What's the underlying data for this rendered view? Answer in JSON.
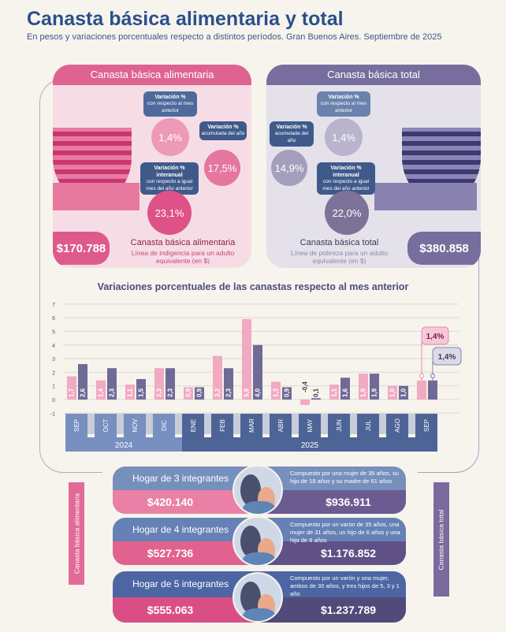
{
  "header": {
    "title": "Canasta básica alimentaria y total",
    "subtitle": "En pesos y variaciones porcentuales respecto a distintos períodos. Gran Buenos Aires. Septiembre de 2025"
  },
  "cba": {
    "title": "Canasta básica alimentaria",
    "var_mes_title": "Variación %",
    "var_mes_sub": "con respecto al mes anterior",
    "var_mes": "1,4%",
    "var_acum_title": "Variación %",
    "var_acum_sub": "acumulada del año",
    "var_acum": "17,5%",
    "var_ia_title": "Variación % interanual",
    "var_ia_sub": "con respecto a igual mes del año anterior",
    "var_ia": "23,1%",
    "price": "$170.788",
    "name": "Canasta básica alimentaria",
    "desc": "Línea de indigencia para un adulto equivalente (en $)"
  },
  "cbt": {
    "title": "Canasta básica total",
    "var_mes_title": "Variación %",
    "var_mes_sub": "con respecto al mes anterior",
    "var_mes": "1,4%",
    "var_acum_title": "Variación %",
    "var_acum_sub": "acumulada del año",
    "var_acum": "14,9%",
    "var_ia_title": "Variación % interanual",
    "var_ia_sub": "con respecto a igual mes del año anterior",
    "var_ia": "22,0%",
    "price": "$380.858",
    "name": "Canasta básica total",
    "desc": "Línea de pobreza para un adulto equivalente (en $)"
  },
  "chart_data": {
    "type": "bar",
    "title": "Variaciones porcentuales de las canastas respecto al mes anterior",
    "categories": [
      "SEP",
      "OCT",
      "NOV",
      "DIC",
      "ENE",
      "FEB",
      "MAR",
      "ABR",
      "MAY",
      "JUN",
      "JUL",
      "AGO",
      "SEP"
    ],
    "years": [
      {
        "label": "2024",
        "months": 4
      },
      {
        "label": "2025",
        "months": 9
      }
    ],
    "series": [
      {
        "name": "Canasta básica alimentaria",
        "color": "#f2a9c2",
        "values": [
          1.7,
          1.4,
          1.1,
          2.3,
          0.9,
          3.2,
          5.9,
          1.3,
          -0.4,
          1.1,
          1.9,
          1.0,
          1.4
        ],
        "labels": [
          "1,7",
          "1,4",
          "1,1",
          "2,3",
          "0,9",
          "3,2",
          "5,9",
          "1,3",
          "-0,4",
          "1,1",
          "1,9",
          "1,0",
          ""
        ]
      },
      {
        "name": "Canasta básica total",
        "color": "#6f6a96",
        "values": [
          2.6,
          2.3,
          1.5,
          2.3,
          0.9,
          2.3,
          4.0,
          0.9,
          0.1,
          1.6,
          1.9,
          1.0,
          1.4
        ],
        "labels": [
          "2,6",
          "2,3",
          "1,5",
          "2,3",
          "0,9",
          "2,3",
          "4,0",
          "0,9",
          "0,1",
          "1,6",
          "1,9",
          "1,0",
          ""
        ]
      }
    ],
    "yticks": [
      -1,
      0,
      1,
      2,
      3,
      4,
      5,
      6,
      7
    ],
    "ylim": [
      -1,
      7
    ],
    "grid": true,
    "callouts": [
      "1,4%",
      "1,4%"
    ]
  },
  "households": [
    {
      "label": "Hogar de 3 integrantes",
      "desc": "Compuesto por una mujer de 35 años, su hijo de 18 años y su madre de 61 años",
      "cba": "$420.140",
      "cbt": "$936.911"
    },
    {
      "label": "Hogar de 4 integrantes",
      "desc": "Compuesto por un varón de 35 años, una mujer de 31 años, un hijo de 6 años y una hija de 8 años",
      "cba": "$527.736",
      "cbt": "$1.176.852"
    },
    {
      "label": "Hogar de 5 integrantes",
      "desc": "Compuesto por un varón y una mujer, ambos de 30 años, y tres hijos de 5, 3 y 1 año",
      "cba": "$555.063",
      "cbt": "$1.237.789"
    }
  ],
  "side": {
    "left": "Canasta básica alimentaria",
    "right": "Canasta básica total"
  }
}
